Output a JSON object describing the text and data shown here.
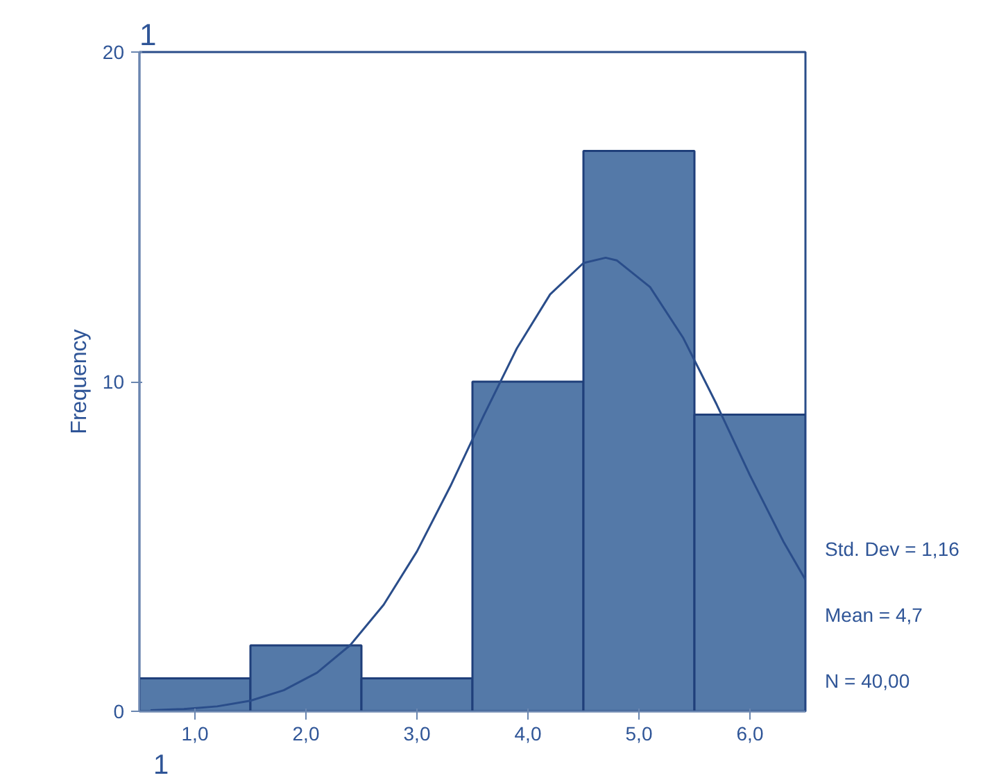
{
  "chart_data": {
    "type": "histogram",
    "title": "1",
    "ylabel": "Frequency",
    "bins": [
      0.5,
      1.5,
      2.5,
      3.5,
      4.5,
      5.5,
      6.5
    ],
    "values": [
      1,
      2,
      1,
      10,
      17,
      9
    ],
    "color": "#5479a8",
    "series": [
      {
        "type": "line",
        "color": "#2a4d8a",
        "x": [
          0.6,
          0.9,
          1.2,
          1.5,
          1.8,
          2.1,
          2.4,
          2.7,
          3.0,
          3.3,
          3.6,
          3.9,
          4.2,
          4.5,
          4.7,
          4.8,
          5.1,
          5.4,
          5.7,
          6.0,
          6.3,
          6.5
        ],
        "values": [
          0.03,
          0.07,
          0.15,
          0.32,
          0.64,
          1.17,
          2.01,
          3.23,
          4.85,
          6.82,
          8.96,
          11.01,
          12.65,
          13.6,
          13.76,
          13.68,
          12.87,
          11.32,
          9.31,
          7.16,
          5.16,
          3.99
        ]
      }
    ],
    "xlim": [
      0.5,
      6.5
    ],
    "ylim": [
      0,
      20
    ],
    "xticks": [
      {
        "value": 1,
        "label": "1,0"
      },
      {
        "value": 2,
        "label": "2,0"
      },
      {
        "value": 3,
        "label": "3,0"
      },
      {
        "value": 4,
        "label": "4,0"
      },
      {
        "value": 5,
        "label": "5,0"
      },
      {
        "value": 6,
        "label": "6,0"
      }
    ],
    "yticks": [
      0,
      10,
      20
    ],
    "annotations": [
      "Std. Dev = 1,16",
      "Mean = 4,7",
      "N = 40,00",
      "1"
    ]
  }
}
